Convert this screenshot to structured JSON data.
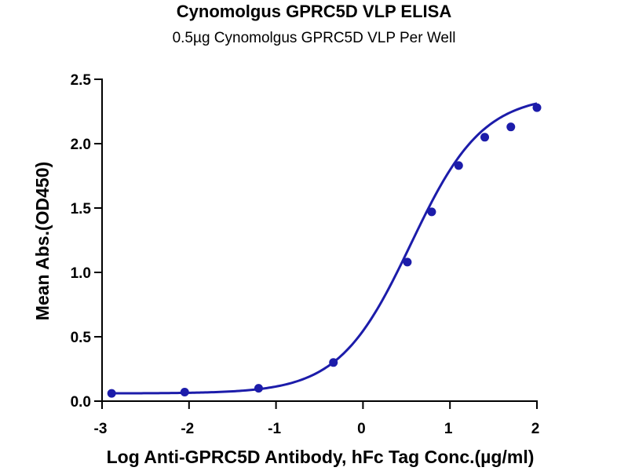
{
  "chart_data": {
    "type": "scatter",
    "title": "Cynomolgus GPRC5D VLP ELISA",
    "subtitle": "0.5µg Cynomolgus GPRC5D VLP Per Well",
    "xlabel": "Log Anti-GPRC5D Antibody, hFc Tag Conc.(µg/ml)",
    "ylabel": "Mean Abs.(OD450)",
    "xlim": [
      -3,
      2
    ],
    "ylim": [
      0.0,
      2.5
    ],
    "x_ticks": [
      "-3",
      "-2",
      "-1",
      "0",
      "1",
      "2"
    ],
    "y_ticks": [
      "0.0",
      "0.5",
      "1.0",
      "1.5",
      "2.0",
      "2.5"
    ],
    "grid": false,
    "legend": "none",
    "series": [
      {
        "color": "#1c1caa",
        "points": [
          {
            "x": -2.89,
            "y": 0.06
          },
          {
            "x": -2.05,
            "y": 0.07
          },
          {
            "x": -1.2,
            "y": 0.1
          },
          {
            "x": -0.34,
            "y": 0.3
          },
          {
            "x": 0.51,
            "y": 1.08
          },
          {
            "x": 0.79,
            "y": 1.47
          },
          {
            "x": 1.1,
            "y": 1.83
          },
          {
            "x": 1.4,
            "y": 2.05
          },
          {
            "x": 1.7,
            "y": 2.13
          },
          {
            "x": 2.0,
            "y": 2.28
          }
        ],
        "fit_curve": {
          "model": "4PL",
          "bottom": 0.06,
          "top": 2.38,
          "logEC50": 0.55,
          "hill": 1.05
        }
      }
    ]
  }
}
